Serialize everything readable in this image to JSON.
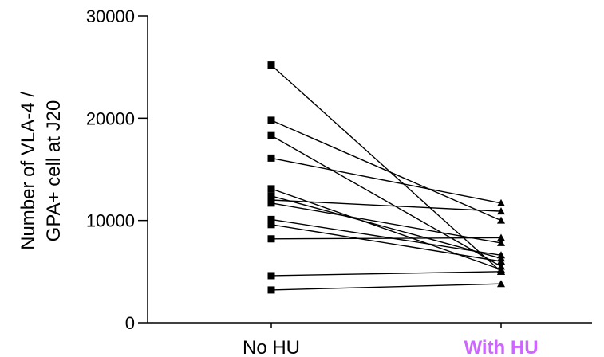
{
  "chart_data": {
    "type": "line",
    "categories": [
      "No HU",
      "With HU"
    ],
    "category_colors": [
      "#000000",
      "#cc66ff"
    ],
    "category_bold": [
      false,
      true
    ],
    "ylabel_lines": [
      "Number of VLA-4 /",
      "GPA+ cell at J20"
    ],
    "ylim": [
      0,
      30000
    ],
    "yticks": [
      0,
      10000,
      20000,
      30000
    ],
    "ytick_labels": [
      "0",
      "10000",
      "20000",
      "30000"
    ],
    "grid": false,
    "marker_start": "square",
    "marker_end": "triangle",
    "line_color": "#000000",
    "pairs": [
      [
        25200,
        5000
      ],
      [
        19800,
        10000
      ],
      [
        18300,
        5500
      ],
      [
        16100,
        11700
      ],
      [
        13100,
        5200
      ],
      [
        12400,
        6300
      ],
      [
        12000,
        10900
      ],
      [
        11700,
        7800
      ],
      [
        10100,
        6600
      ],
      [
        9600,
        6000
      ],
      [
        8200,
        8300
      ],
      [
        4600,
        5000
      ],
      [
        3200,
        3800
      ]
    ]
  }
}
